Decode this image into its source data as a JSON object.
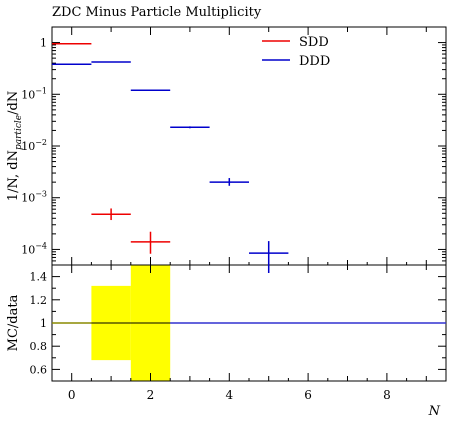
{
  "chart_data": [
    {
      "type": "line",
      "title": "ZDC Minus Particle Multiplicity",
      "xlabel": "N",
      "ylabel": "1/N, dN_particle/dN",
      "yscale": "log",
      "xlim": [
        -0.5,
        9.5
      ],
      "ylim": [
        5e-05,
        2
      ],
      "xticks": [
        0,
        2,
        4,
        6,
        8
      ],
      "yticks": [
        {
          "v": 1,
          "label": "1"
        },
        {
          "v": 0.1,
          "label": "10^-1"
        },
        {
          "v": 0.01,
          "label": "10^-2"
        },
        {
          "v": 0.001,
          "label": "10^-3"
        },
        {
          "v": 0.0001,
          "label": "10^-4"
        }
      ],
      "legend_placement": "top-right",
      "series": [
        {
          "name": "SDD",
          "color": "#ee0000",
          "points": [
            {
              "x": 0,
              "y": 0.95,
              "ylo": 0.95,
              "yhi": 0.95
            },
            {
              "x": 1,
              "y": 0.00048,
              "ylo": 0.00037,
              "yhi": 0.00062
            },
            {
              "x": 2,
              "y": 0.00014,
              "ylo": 8.25e-05,
              "yhi": 0.00022
            }
          ]
        },
        {
          "name": "DDD",
          "color": "#0000cc",
          "points": [
            {
              "x": 0,
              "y": 0.38,
              "ylo": 0.38,
              "yhi": 0.38
            },
            {
              "x": 1,
              "y": 0.42,
              "ylo": 0.42,
              "yhi": 0.42
            },
            {
              "x": 2,
              "y": 0.12,
              "ylo": 0.12,
              "yhi": 0.12
            },
            {
              "x": 3,
              "y": 0.023,
              "ylo": 0.022,
              "yhi": 0.024
            },
            {
              "x": 4,
              "y": 0.002,
              "ylo": 0.0017,
              "yhi": 0.0024
            },
            {
              "x": 5,
              "y": 8.5e-05,
              "ylo": 3.5e-05,
              "yhi": 0.000145
            }
          ]
        }
      ]
    },
    {
      "type": "line",
      "title": "",
      "xlabel": "N",
      "ylabel": "MC/data",
      "xlim": [
        -0.5,
        9.5
      ],
      "ylim": [
        0.5,
        1.5
      ],
      "xticks": [
        0,
        2,
        4,
        6,
        8
      ],
      "yticks": [
        {
          "v": 0.6,
          "label": "0.6"
        },
        {
          "v": 0.8,
          "label": "0.8"
        },
        {
          "v": 1.0,
          "label": "1"
        },
        {
          "v": 1.2,
          "label": "1.2"
        },
        {
          "v": 1.4,
          "label": "1.4"
        }
      ],
      "uncertainty_band": {
        "color": "#ffff00",
        "bins": [
          {
            "x0": 0.5,
            "x1": 1.5,
            "lo": 0.68,
            "hi": 1.32
          },
          {
            "x0": 1.5,
            "x1": 2.5,
            "lo": 0.5,
            "hi": 1.5
          }
        ]
      },
      "reference_line": 1.0,
      "ratio_lines": [
        {
          "color": "#8a8a00",
          "x0": -0.5,
          "x1": 0.5,
          "y": 1.0
        },
        {
          "color": "#3030d0",
          "x0": 2.5,
          "x1": 9.5,
          "y": 1.0
        }
      ]
    }
  ]
}
